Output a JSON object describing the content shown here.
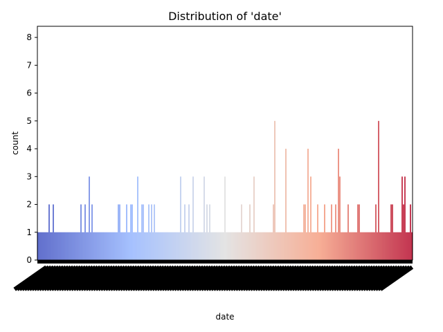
{
  "chart_data": {
    "type": "bar",
    "title": "Distribution of 'date'",
    "xlabel": "date",
    "ylabel": "count",
    "ylim": [
      0,
      8.4
    ],
    "yticks": [
      0,
      1,
      2,
      3,
      4,
      5,
      6,
      7,
      8
    ],
    "palette": "coolwarm",
    "grid": false,
    "legend": "none",
    "values": [
      1,
      1,
      1,
      1,
      1,
      1,
      1,
      1,
      2,
      1,
      1,
      2,
      1,
      1,
      1,
      1,
      1,
      1,
      1,
      1,
      1,
      1,
      1,
      1,
      1,
      1,
      1,
      1,
      1,
      1,
      1,
      2,
      1,
      1,
      2,
      1,
      1,
      3,
      1,
      2,
      1,
      1,
      1,
      1,
      1,
      1,
      1,
      1,
      1,
      1,
      1,
      1,
      1,
      1,
      1,
      1,
      1,
      1,
      2,
      2,
      1,
      1,
      1,
      1,
      2,
      1,
      1,
      2,
      2,
      1,
      1,
      1,
      3,
      1,
      1,
      2,
      2,
      1,
      1,
      1,
      2,
      1,
      2,
      1,
      2,
      1,
      1,
      1,
      1,
      1,
      1,
      1,
      1,
      1,
      1,
      1,
      1,
      1,
      1,
      1,
      1,
      1,
      1,
      3,
      1,
      1,
      2,
      1,
      1,
      2,
      1,
      1,
      3,
      1,
      1,
      1,
      1,
      1,
      1,
      1,
      3,
      1,
      2,
      1,
      2,
      1,
      1,
      1,
      1,
      1,
      1,
      1,
      1,
      1,
      1,
      3,
      1,
      1,
      1,
      1,
      1,
      1,
      1,
      1,
      1,
      1,
      1,
      2,
      1,
      1,
      1,
      1,
      1,
      2,
      1,
      1,
      3,
      1,
      1,
      1,
      1,
      1,
      1,
      1,
      1,
      1,
      1,
      1,
      1,
      1,
      2,
      5,
      1,
      1,
      1,
      1,
      1,
      1,
      1,
      4,
      1,
      1,
      1,
      1,
      1,
      1,
      1,
      1,
      1,
      1,
      1,
      1,
      2,
      2,
      1,
      4,
      1,
      3,
      1,
      1,
      1,
      1,
      2,
      1,
      1,
      1,
      1,
      2,
      1,
      1,
      1,
      1,
      2,
      1,
      1,
      2,
      1,
      4,
      3,
      1,
      1,
      1,
      1,
      1,
      2,
      1,
      1,
      1,
      1,
      1,
      1,
      2,
      2,
      1,
      1,
      1,
      1,
      1,
      1,
      1,
      1,
      1,
      1,
      1,
      2,
      1,
      5,
      1,
      1,
      1,
      1,
      1,
      1,
      1,
      1,
      2,
      2,
      1,
      1,
      1,
      1,
      1,
      1,
      3,
      2,
      3,
      1,
      1,
      1,
      2,
      1
    ]
  }
}
